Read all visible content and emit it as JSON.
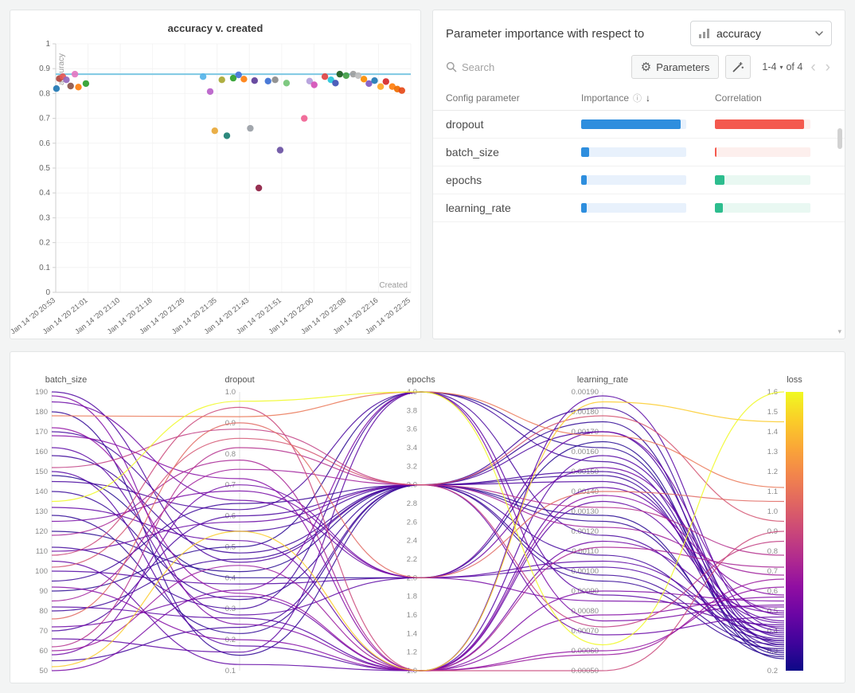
{
  "colors": {
    "page_bg": "#f3f4f4",
    "panel_border": "#e3e5e6",
    "reference_line": "#7ec8e3"
  },
  "importance_panel": {
    "header": "Parameter importance with respect to",
    "metric_selector": {
      "value": "accuracy",
      "icon": "bar-chart"
    },
    "search_placeholder": "Search",
    "parameters_button_label": "Parameters",
    "pagination": {
      "range_label": "1-4",
      "of_label": "of 4"
    },
    "table": {
      "columns": [
        "Config parameter",
        "Importance",
        "Correlation"
      ],
      "rows": [
        {
          "parameter": "dropout",
          "importance": 0.95,
          "correlation": 0.93,
          "correlation_sign": "negative"
        },
        {
          "parameter": "batch_size",
          "importance": 0.075,
          "correlation": 0.02,
          "correlation_sign": "negative"
        },
        {
          "parameter": "epochs",
          "importance": 0.05,
          "correlation": 0.1,
          "correlation_sign": "positive"
        },
        {
          "parameter": "learning_rate",
          "importance": 0.05,
          "correlation": 0.08,
          "correlation_sign": "positive"
        }
      ]
    },
    "bar_colors": {
      "importance_fill": "#2e8ede",
      "importance_track": "#e8f1fc",
      "negative_fill": "#f4594e",
      "negative_track": "#fdefed",
      "positive_fill": "#2dbd8e",
      "positive_track": "#e9f8f2"
    }
  },
  "chart_data": [
    {
      "type": "scatter",
      "title": "accuracy v. created",
      "xlabel": "Created",
      "ylabel": "accuracy",
      "ylim": [
        0,
        1
      ],
      "y_ticks": [
        "1",
        "0.9",
        "0.8",
        "0.7",
        "0.6",
        "0.5",
        "0.4",
        "0.3",
        "0.2",
        "0.1",
        "0"
      ],
      "x_tick_labels": [
        "Jan 14 '20 20:53",
        "Jan 14 '20 21:01",
        "Jan 14 '20 21:10",
        "Jan 14 '20 21:18",
        "Jan 14 '20 21:26",
        "Jan 14 '20 21:35",
        "Jan 14 '20 21:43",
        "Jan 14 '20 21:51",
        "Jan 14 '20 22:00",
        "Jan 14 '20 22:08",
        "Jan 14 '20 22:16",
        "Jan 14 '20 22:25"
      ],
      "reference_line_y": 0.878,
      "reference_line_color": "#7ec8e3",
      "points": [
        {
          "x": 0.002,
          "y": 0.82,
          "color": "#1f77b4"
        },
        {
          "x": 0.01,
          "y": 0.86,
          "color": "#b2453c"
        },
        {
          "x": 0.02,
          "y": 0.868,
          "color": "#e45756"
        },
        {
          "x": 0.03,
          "y": 0.855,
          "color": "#9467bd"
        },
        {
          "x": 0.042,
          "y": 0.83,
          "color": "#8c564b"
        },
        {
          "x": 0.054,
          "y": 0.878,
          "color": "#e377c2"
        },
        {
          "x": 0.064,
          "y": 0.826,
          "color": "#ff7f0e"
        },
        {
          "x": 0.085,
          "y": 0.84,
          "color": "#2ca02c"
        },
        {
          "x": 0.415,
          "y": 0.868,
          "color": "#56b4e9"
        },
        {
          "x": 0.435,
          "y": 0.808,
          "color": "#b85fc9"
        },
        {
          "x": 0.448,
          "y": 0.65,
          "color": "#e8a838"
        },
        {
          "x": 0.468,
          "y": 0.855,
          "color": "#a8a832"
        },
        {
          "x": 0.482,
          "y": 0.63,
          "color": "#1b7f72"
        },
        {
          "x": 0.5,
          "y": 0.862,
          "color": "#2ca02c"
        },
        {
          "x": 0.515,
          "y": 0.875,
          "color": "#4472d8"
        },
        {
          "x": 0.53,
          "y": 0.858,
          "color": "#ff7f0e"
        },
        {
          "x": 0.548,
          "y": 0.66,
          "color": "#9aa0a6"
        },
        {
          "x": 0.56,
          "y": 0.852,
          "color": "#5c3d99"
        },
        {
          "x": 0.572,
          "y": 0.42,
          "color": "#8e2043"
        },
        {
          "x": 0.598,
          "y": 0.85,
          "color": "#3b6fd4"
        },
        {
          "x": 0.618,
          "y": 0.855,
          "color": "#8a8a8a"
        },
        {
          "x": 0.632,
          "y": 0.572,
          "color": "#6a51a3"
        },
        {
          "x": 0.65,
          "y": 0.842,
          "color": "#74c476"
        },
        {
          "x": 0.7,
          "y": 0.7,
          "color": "#f06292"
        },
        {
          "x": 0.715,
          "y": 0.85,
          "color": "#b39ddb"
        },
        {
          "x": 0.728,
          "y": 0.835,
          "color": "#d44fb6"
        },
        {
          "x": 0.758,
          "y": 0.868,
          "color": "#e04444"
        },
        {
          "x": 0.775,
          "y": 0.855,
          "color": "#26c6da"
        },
        {
          "x": 0.788,
          "y": 0.842,
          "color": "#3f51b5"
        },
        {
          "x": 0.8,
          "y": 0.878,
          "color": "#1b5e20"
        },
        {
          "x": 0.818,
          "y": 0.872,
          "color": "#43a047"
        },
        {
          "x": 0.838,
          "y": 0.878,
          "color": "#9e9e9e"
        },
        {
          "x": 0.852,
          "y": 0.872,
          "color": "#bdbdbd"
        },
        {
          "x": 0.868,
          "y": 0.858,
          "color": "#fb8c00"
        },
        {
          "x": 0.882,
          "y": 0.84,
          "color": "#7e57c2"
        },
        {
          "x": 0.898,
          "y": 0.852,
          "color": "#1f77b4"
        },
        {
          "x": 0.915,
          "y": 0.828,
          "color": "#ffa726"
        },
        {
          "x": 0.93,
          "y": 0.848,
          "color": "#d62728"
        },
        {
          "x": 0.948,
          "y": 0.828,
          "color": "#ff7f0e"
        },
        {
          "x": 0.962,
          "y": 0.818,
          "color": "#ef6c00"
        },
        {
          "x": 0.975,
          "y": 0.812,
          "color": "#e64a19"
        }
      ]
    },
    {
      "type": "parallel-coordinates",
      "color_by": "loss",
      "colormap": "plasma",
      "axes": [
        {
          "name": "batch_size",
          "min": 50,
          "max": 190,
          "ticks": [
            "190",
            "180",
            "170",
            "160",
            "150",
            "140",
            "130",
            "120",
            "110",
            "100",
            "90",
            "80",
            "70",
            "60",
            "50"
          ]
        },
        {
          "name": "dropout",
          "min": 0.1,
          "max": 1.0,
          "ticks": [
            "1.0",
            "0.9",
            "0.8",
            "0.7",
            "0.6",
            "0.5",
            "0.4",
            "0.3",
            "0.2",
            "0.1"
          ]
        },
        {
          "name": "epochs",
          "min": 1.0,
          "max": 4.0,
          "ticks": [
            "4.0",
            "3.8",
            "3.6",
            "3.4",
            "3.2",
            "3.0",
            "2.8",
            "2.6",
            "2.4",
            "2.2",
            "2.0",
            "1.8",
            "1.6",
            "1.4",
            "1.2",
            "1.0"
          ]
        },
        {
          "name": "learning_rate",
          "min": 0.0005,
          "max": 0.0019,
          "ticks": [
            "0.00190",
            "0.00180",
            "0.00170",
            "0.00160",
            "0.00150",
            "0.00140",
            "0.00130",
            "0.00120",
            "0.00110",
            "0.00100",
            "0.00090",
            "0.00080",
            "0.00070",
            "0.00060",
            "0.00050"
          ]
        },
        {
          "name": "loss",
          "min": 0.2,
          "max": 1.6,
          "ticks": [
            "1.6",
            "1.5",
            "1.4",
            "1.3",
            "1.2",
            "1.1",
            "1.0",
            "0.9",
            "0.8",
            "0.7",
            "0.6",
            "0.5",
            "0.4",
            "0.3",
            "0.2"
          ]
        }
      ],
      "runs": [
        [
          190,
          0.45,
          3,
          0.00145,
          0.38
        ],
        [
          188,
          0.25,
          1,
          0.0009,
          0.55
        ],
        [
          185,
          0.65,
          2,
          0.0017,
          0.48
        ],
        [
          180,
          0.15,
          3,
          0.00125,
          0.3
        ],
        [
          178,
          0.92,
          4,
          0.00168,
          1.12
        ],
        [
          172,
          0.35,
          1,
          0.0006,
          0.62
        ],
        [
          170,
          0.55,
          3,
          0.0015,
          0.35
        ],
        [
          168,
          0.72,
          1,
          0.00138,
          0.58
        ],
        [
          162,
          0.28,
          2,
          0.00105,
          0.42
        ],
        [
          158,
          0.48,
          3,
          0.00182,
          0.33
        ],
        [
          152,
          0.88,
          3,
          0.00072,
          0.85
        ],
        [
          150,
          0.18,
          1,
          0.00158,
          0.4
        ],
        [
          148,
          0.4,
          2,
          0.00165,
          0.26
        ],
        [
          145,
          0.62,
          4,
          0.00118,
          0.36
        ],
        [
          140,
          0.33,
          3,
          0.00095,
          0.31
        ],
        [
          135,
          0.97,
          4,
          0.00063,
          1.6
        ],
        [
          132,
          0.52,
          1,
          0.00142,
          0.45
        ],
        [
          128,
          0.22,
          3,
          0.00175,
          0.29
        ],
        [
          125,
          0.68,
          2,
          0.00085,
          0.52
        ],
        [
          120,
          0.42,
          3,
          0.00128,
          0.27
        ],
        [
          118,
          0.78,
          1,
          0.00112,
          0.72
        ],
        [
          112,
          0.3,
          4,
          0.00155,
          0.34
        ],
        [
          110,
          0.58,
          3,
          0.00068,
          0.47
        ],
        [
          108,
          0.95,
          1,
          0.0005,
          0.9
        ],
        [
          105,
          0.12,
          1,
          0.00135,
          0.44
        ],
        [
          102,
          0.85,
          3,
          0.00178,
          0.95
        ],
        [
          100,
          0.38,
          2,
          0.00102,
          0.39
        ],
        [
          95,
          0.64,
          3,
          0.00148,
          0.32
        ],
        [
          92,
          0.2,
          1,
          0.00078,
          0.57
        ],
        [
          90,
          0.5,
          4,
          0.00162,
          0.28
        ],
        [
          85,
          0.75,
          3,
          0.00122,
          0.68
        ],
        [
          82,
          0.27,
          1,
          0.00188,
          0.41
        ],
        [
          80,
          0.46,
          3,
          0.00098,
          0.33
        ],
        [
          76,
          0.9,
          2,
          0.0014,
          1.05
        ],
        [
          72,
          0.34,
          1,
          0.00115,
          0.49
        ],
        [
          70,
          0.6,
          3,
          0.0017,
          0.37
        ],
        [
          66,
          0.16,
          4,
          0.00088,
          0.43
        ],
        [
          62,
          0.82,
          3,
          0.00132,
          0.78
        ],
        [
          60,
          0.44,
          1,
          0.00058,
          0.66
        ],
        [
          58,
          0.7,
          2,
          0.00152,
          0.5
        ],
        [
          55,
          0.24,
          3,
          0.00108,
          0.35
        ],
        [
          52,
          0.55,
          1,
          0.00185,
          1.45
        ],
        [
          50,
          0.36,
          4,
          0.00075,
          0.53
        ]
      ]
    }
  ]
}
